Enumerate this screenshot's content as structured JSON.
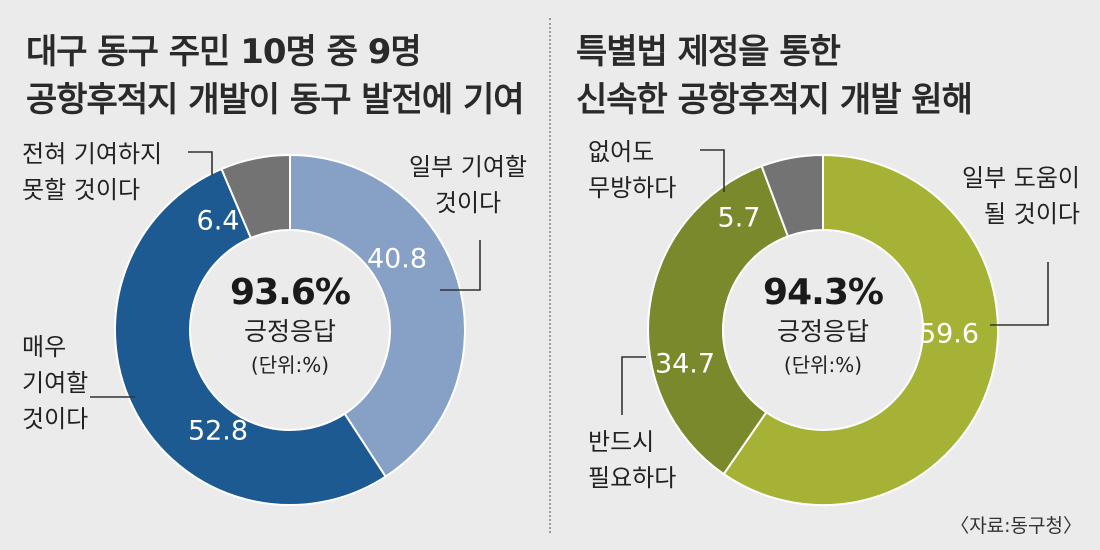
{
  "chart_data": [
    {
      "type": "pie",
      "title_lines": [
        "대구 동구 주민 10명 중 9명",
        "공항후적지 개발이 동구 발전에 기여"
      ],
      "center_value": "93.6%",
      "center_label": "긍정응답",
      "unit_note": "(단위:%)",
      "slices": [
        {
          "label": "일부 기여할 것이다",
          "label_lines": [
            "일부 기여할",
            "것이다"
          ],
          "value": 40.8,
          "value_text": "40.8",
          "color": "#87a0c6"
        },
        {
          "label": "매우 기여할 것이다",
          "label_lines": [
            "매우",
            "기여할",
            "것이다"
          ],
          "value": 52.8,
          "value_text": "52.8",
          "color": "#1d5a92"
        },
        {
          "label": "전혀 기여하지 못할 것이다",
          "label_lines": [
            "전혀 기여하지",
            "못할 것이다"
          ],
          "value": 6.4,
          "value_text": "6.4",
          "color": "#737373"
        }
      ]
    },
    {
      "type": "pie",
      "title_lines": [
        "특별법 제정을 통한",
        "신속한 공항후적지 개발 원해"
      ],
      "center_value": "94.3%",
      "center_label": "긍정응답",
      "unit_note": "(단위:%)",
      "slices": [
        {
          "label": "일부 도움이 될 것이다",
          "label_lines": [
            "일부 도움이",
            "될 것이다"
          ],
          "value": 59.6,
          "value_text": "59.6",
          "color": "#a6b235"
        },
        {
          "label": "반드시 필요하다",
          "label_lines": [
            "반드시",
            "필요하다"
          ],
          "value": 34.7,
          "value_text": "34.7",
          "color": "#79892c"
        },
        {
          "label": "없어도 무방하다",
          "label_lines": [
            "없어도",
            "무방하다"
          ],
          "value": 5.7,
          "value_text": "5.7",
          "color": "#737373"
        }
      ]
    }
  ],
  "source": "〈자료:동구청〉"
}
